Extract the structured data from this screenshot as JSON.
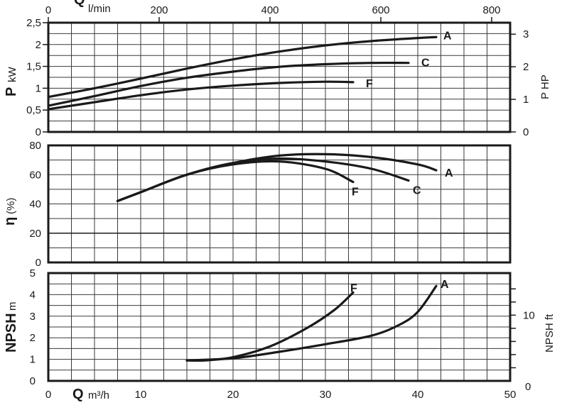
{
  "colors": {
    "ink": "#1a1a1a",
    "grid": "#3a3a3a",
    "background": "#ffffff"
  },
  "chart_data": [
    {
      "type": "line",
      "panel": "power",
      "title": "",
      "x_axis": {
        "label_big": "Q",
        "label": "m³/h",
        "range": [
          0,
          50
        ],
        "ticks": [
          "0",
          "10",
          "20",
          "30",
          "40",
          "50"
        ]
      },
      "x_top_axis": {
        "label_big": "Q",
        "label": "l/min",
        "range": [
          0,
          833.33
        ],
        "ticks": [
          "0",
          "200",
          "400",
          "600",
          "800"
        ]
      },
      "y_axis": {
        "label_big": "P",
        "label": "kW",
        "range": [
          0,
          2.5
        ],
        "ticks": [
          "0",
          "0,5",
          "1",
          "1,5",
          "2",
          "2,5"
        ]
      },
      "y_right_axis": {
        "label": "P HP",
        "ticks": [
          "0",
          "1",
          "2",
          "3"
        ]
      },
      "grid": true,
      "series": [
        {
          "name": "A",
          "x": [
            0,
            5,
            10,
            15,
            20,
            25,
            30,
            35,
            40,
            42
          ],
          "y": [
            0.8,
            1.0,
            1.22,
            1.45,
            1.66,
            1.84,
            1.98,
            2.08,
            2.15,
            2.17
          ]
        },
        {
          "name": "C",
          "x": [
            0,
            5,
            10,
            15,
            20,
            25,
            30,
            35,
            39
          ],
          "y": [
            0.6,
            0.82,
            1.05,
            1.24,
            1.38,
            1.49,
            1.55,
            1.58,
            1.58
          ]
        },
        {
          "name": "F",
          "x": [
            0,
            5,
            10,
            15,
            20,
            25,
            30,
            33
          ],
          "y": [
            0.52,
            0.68,
            0.84,
            0.97,
            1.06,
            1.12,
            1.15,
            1.14
          ]
        }
      ]
    },
    {
      "type": "line",
      "panel": "efficiency",
      "title": "",
      "y_axis": {
        "label_big": "η",
        "label": "(%)",
        "range": [
          0,
          80
        ],
        "ticks": [
          "0",
          "20",
          "40",
          "60",
          "80"
        ]
      },
      "grid": true,
      "series": [
        {
          "name": "A",
          "x": [
            7.5,
            10,
            15,
            20,
            25,
            30,
            35,
            40,
            42
          ],
          "y": [
            42,
            48,
            60,
            68,
            73,
            74,
            72,
            67,
            63
          ]
        },
        {
          "name": "C",
          "x": [
            7.5,
            10,
            15,
            20,
            25,
            30,
            35,
            39
          ],
          "y": [
            42,
            48,
            60,
            68,
            71,
            69,
            64,
            56
          ]
        },
        {
          "name": "F",
          "x": [
            7.5,
            10,
            15,
            20,
            25,
            30,
            33
          ],
          "y": [
            42,
            48,
            60,
            67,
            69,
            64,
            55
          ]
        }
      ]
    },
    {
      "type": "line",
      "panel": "npsh",
      "title": "",
      "x_axis": {
        "label_big": "Q",
        "label": "m³/h",
        "range": [
          0,
          50
        ],
        "ticks": [
          "0",
          "10",
          "20",
          "30",
          "40",
          "50"
        ]
      },
      "y_axis": {
        "label_big": "NPSH",
        "label": "m",
        "range": [
          0,
          5
        ],
        "ticks": [
          "0",
          "1",
          "2",
          "3",
          "4",
          "5"
        ]
      },
      "y_right_axis": {
        "label": "NPSH ft",
        "ticks": [
          "0",
          "10"
        ]
      },
      "grid": true,
      "series": [
        {
          "name": "F",
          "x": [
            15,
            17,
            20,
            24,
            28,
            31,
            33
          ],
          "y": [
            0.95,
            0.95,
            1.1,
            1.6,
            2.45,
            3.3,
            4.1
          ]
        },
        {
          "name": "A",
          "x": [
            15,
            20,
            25,
            30,
            35,
            38,
            40,
            42
          ],
          "y": [
            0.95,
            1.05,
            1.35,
            1.7,
            2.1,
            2.6,
            3.2,
            4.4
          ]
        }
      ]
    }
  ]
}
